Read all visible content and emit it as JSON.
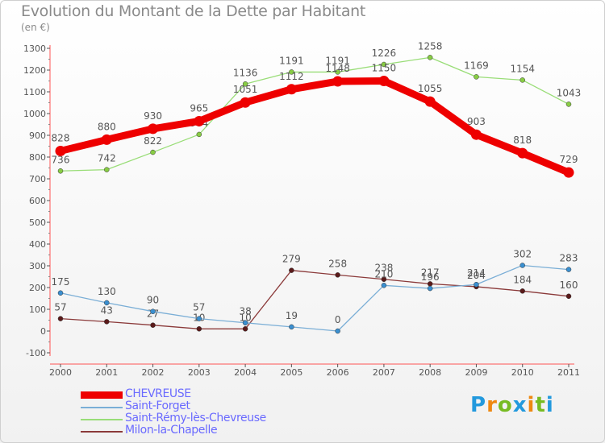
{
  "chart_data": {
    "type": "line",
    "title": "Evolution du Montant de la Dette par Habitant",
    "subtitle": "(en €)",
    "x": [
      "2000",
      "2001",
      "2002",
      "2003",
      "2004",
      "2005",
      "2006",
      "2007",
      "2008",
      "2009",
      "2010",
      "2011"
    ],
    "ylim": [
      -100,
      1300
    ],
    "yticks": [
      -100,
      0,
      100,
      200,
      300,
      400,
      500,
      600,
      700,
      800,
      900,
      1000,
      1100,
      1200,
      1300
    ],
    "grid": false,
    "legend_position": "bottom-left",
    "series": [
      {
        "name": "Milon-la-Chapelle",
        "values": [
          57,
          43,
          27,
          10,
          10,
          279,
          258,
          238,
          217,
          204,
          184,
          160
        ],
        "color": "#8b3a3a",
        "marker": "#5a1a1a"
      },
      {
        "name": "Saint-Forget",
        "values": [
          175,
          130,
          90,
          57,
          38,
          19,
          0,
          210,
          196,
          214,
          302,
          283
        ],
        "color": "#7aaed6",
        "marker": "#3a8fd0"
      },
      {
        "name": "Saint-Rémy-lès-Chevreuse",
        "values": [
          736,
          742,
          822,
          904,
          1136,
          1191,
          1191,
          1226,
          1258,
          1169,
          1154,
          1043
        ],
        "color": "#99dd77",
        "marker": "#88cc44"
      },
      {
        "name": "CHEVREUSE",
        "values": [
          828,
          880,
          930,
          965,
          1051,
          1112,
          1148,
          1150,
          1055,
          903,
          818,
          729
        ],
        "color": "#ee0000",
        "marker": "#ee0000"
      }
    ]
  },
  "legend": {
    "items": [
      {
        "label": "CHEVREUSE",
        "color": "#ee0000"
      },
      {
        "label": "Saint-Forget",
        "color": "#7aaed6"
      },
      {
        "label": "Saint-Rémy-lès-Chevreuse",
        "color": "#99dd77"
      },
      {
        "label": "Milon-la-Chapelle",
        "color": "#8b3a3a"
      }
    ]
  },
  "logo": {
    "text": "Proxiti",
    "letters": [
      {
        "char": "P",
        "color": "#2299dd"
      },
      {
        "char": "r",
        "color": "#ee8811"
      },
      {
        "char": "o",
        "color": "#77bb22"
      },
      {
        "char": "x",
        "color": "#2299dd"
      },
      {
        "char": "i",
        "color": "#ee8811"
      },
      {
        "char": "t",
        "color": "#77bb22"
      },
      {
        "char": "i",
        "color": "#2299dd"
      }
    ]
  }
}
